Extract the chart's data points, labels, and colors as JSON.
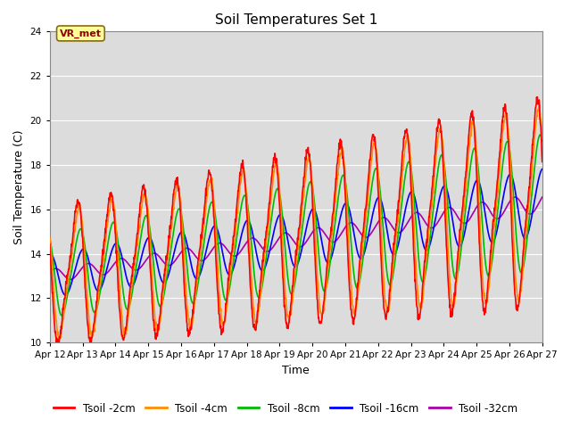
{
  "title": "Soil Temperatures Set 1",
  "xlabel": "Time",
  "ylabel": "Soil Temperature (C)",
  "ylim": [
    10,
    24
  ],
  "yticks": [
    10,
    12,
    14,
    16,
    18,
    20,
    22,
    24
  ],
  "x_labels": [
    "Apr 12",
    "Apr 13",
    "Apr 14",
    "Apr 15",
    "Apr 16",
    "Apr 17",
    "Apr 18",
    "Apr 19",
    "Apr 20",
    "Apr 21",
    "Apr 22",
    "Apr 23",
    "Apr 24",
    "Apr 25",
    "Apr 26",
    "Apr 27"
  ],
  "annotation_text": "VR_met",
  "colors": {
    "Tsoil -2cm": "#FF0000",
    "Tsoil -4cm": "#FF8C00",
    "Tsoil -8cm": "#00BB00",
    "Tsoil -16cm": "#0000FF",
    "Tsoil -32cm": "#AA00AA"
  },
  "plot_bg": "#DCDCDC",
  "grid_color": "#FFFFFF",
  "figsize": [
    6.4,
    4.8
  ],
  "dpi": 100
}
